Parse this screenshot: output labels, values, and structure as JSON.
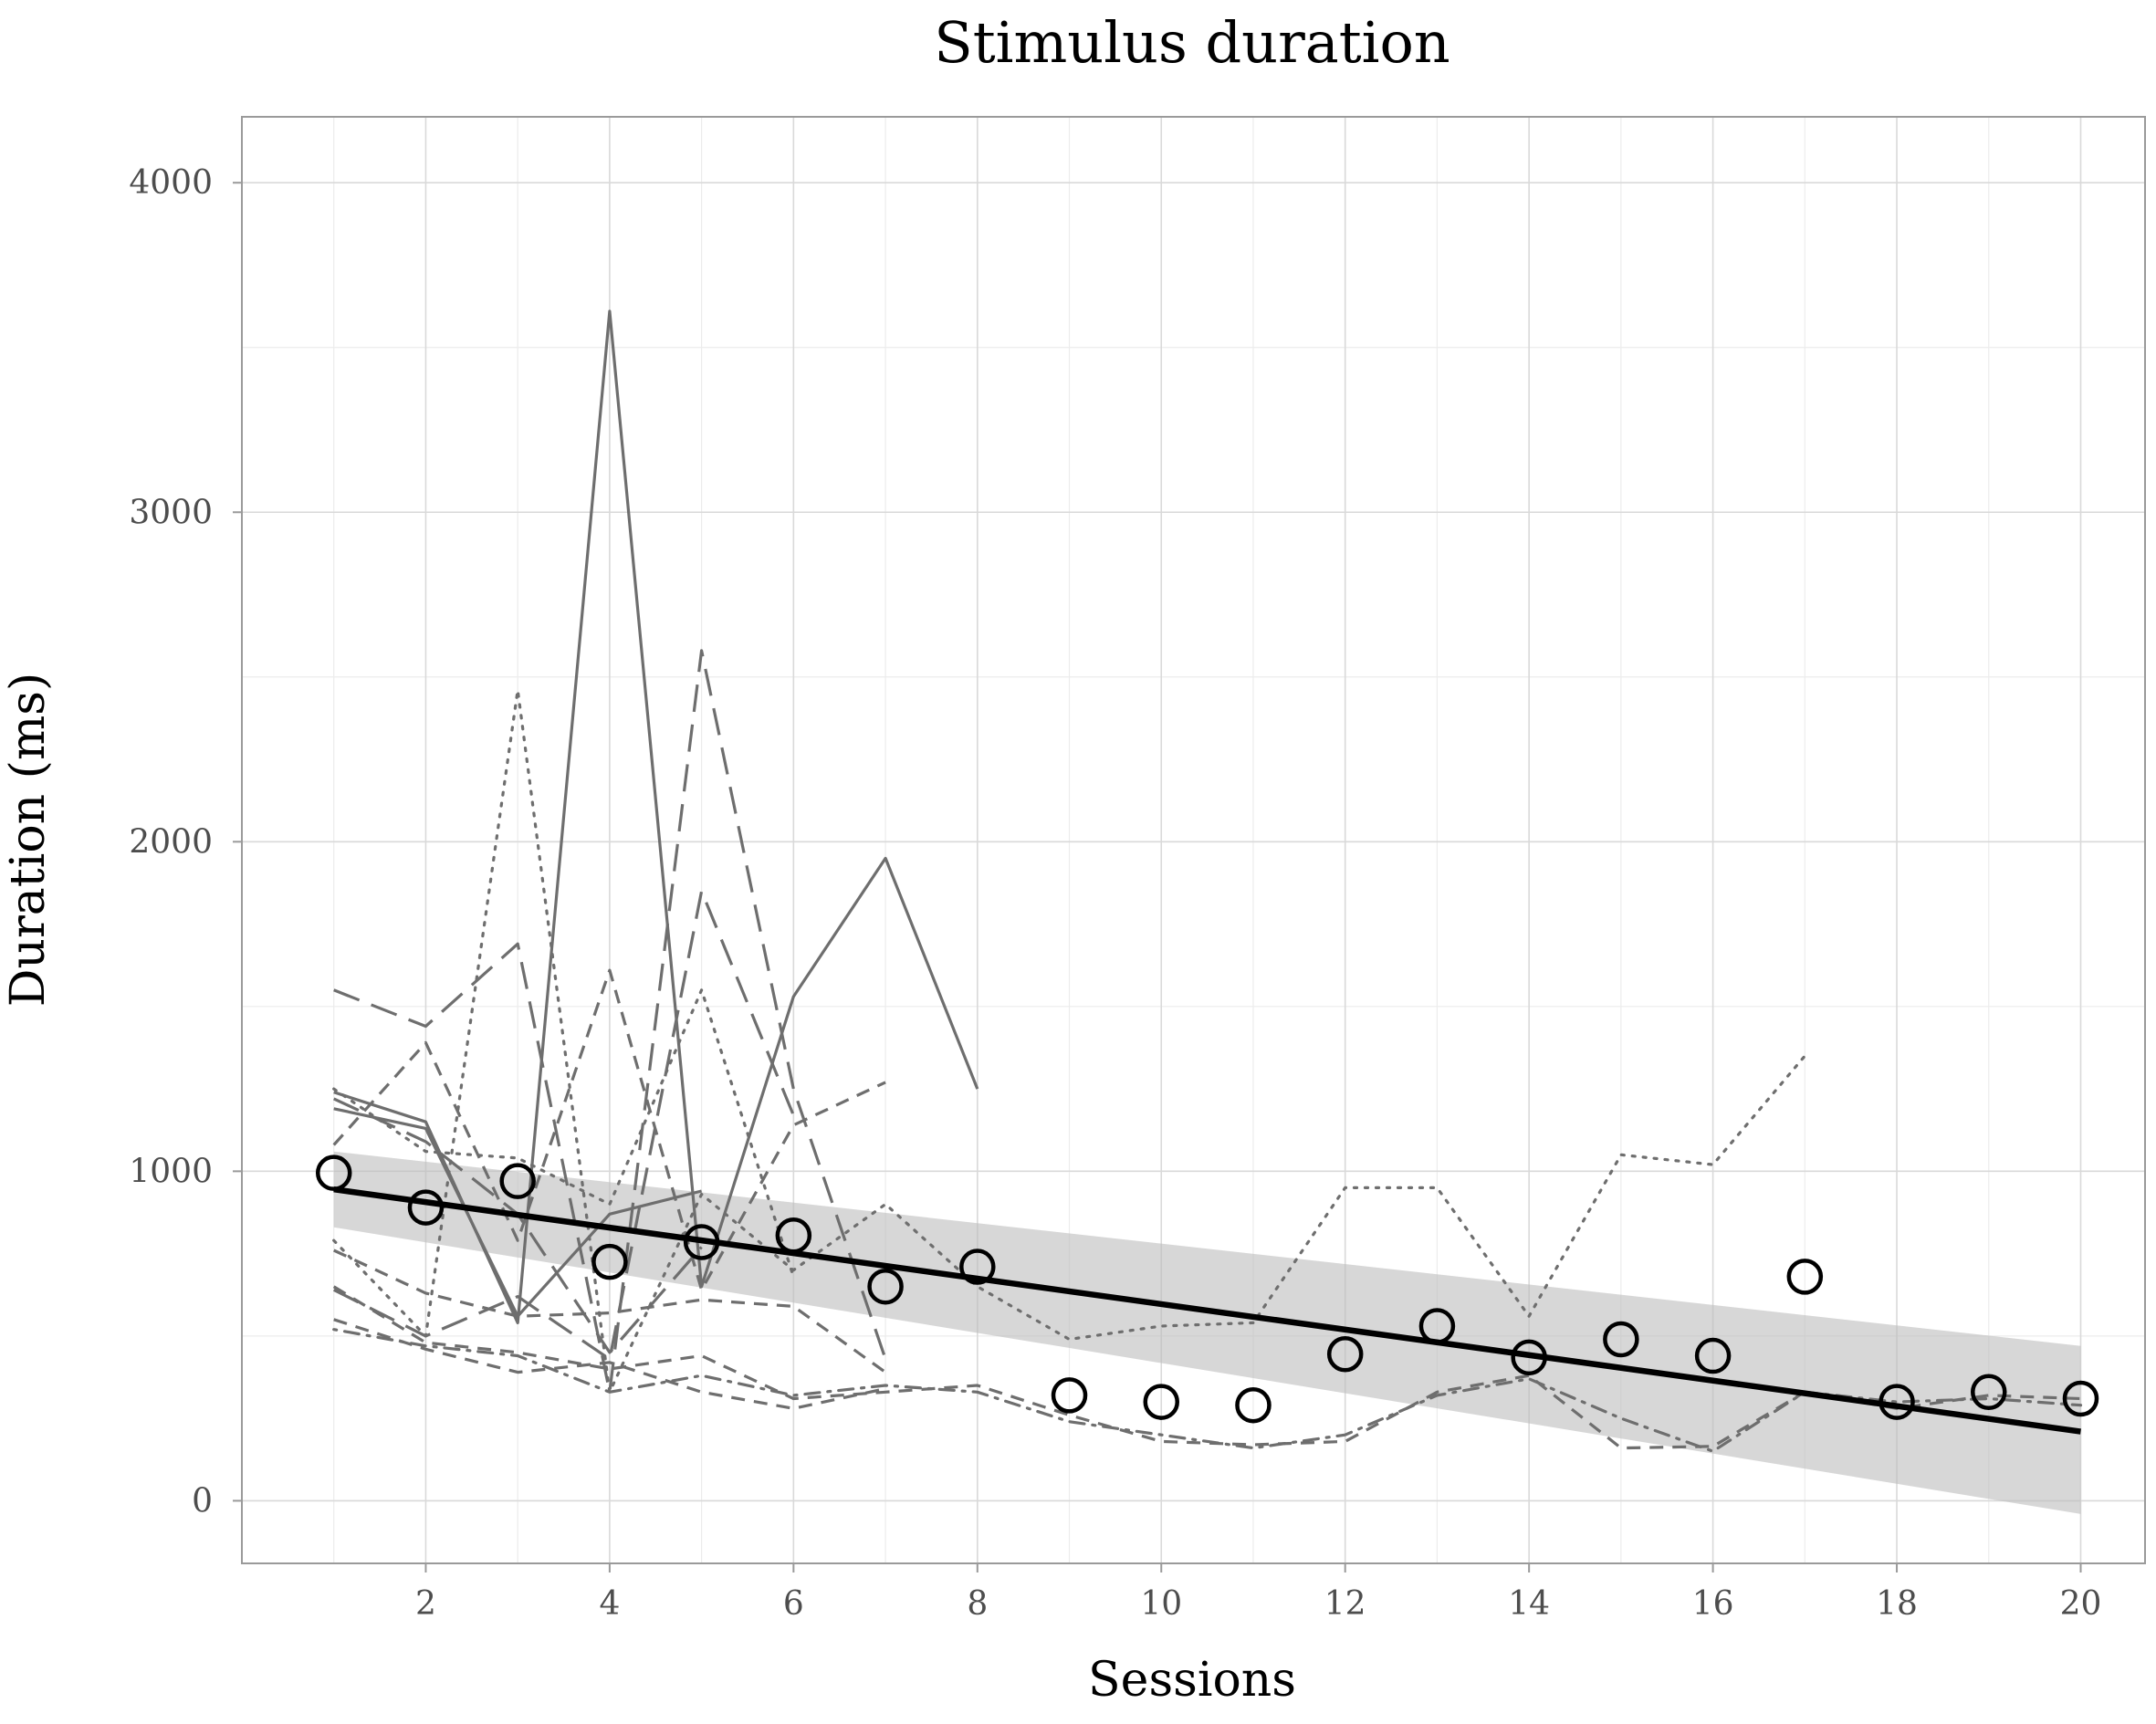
{
  "chart_data": {
    "type": "line",
    "title": "Stimulus duration",
    "xlabel": "Sessions",
    "ylabel": "Duration (ms)",
    "xlim": [
      0,
      20.7
    ],
    "ylim": [
      -190,
      4200
    ],
    "x_ticks": [
      2,
      4,
      6,
      8,
      10,
      12,
      14,
      16,
      18,
      20
    ],
    "x_tick_labels": [
      "2",
      "4",
      "6",
      "8",
      "10",
      "12",
      "14",
      "16",
      "18",
      "20"
    ],
    "y_ticks": [
      0,
      1000,
      2000,
      3000,
      4000
    ],
    "y_tick_labels": [
      "0",
      "1000",
      "2000",
      "3000",
      "4000"
    ],
    "grid": true,
    "legend": "none",
    "mean_points": {
      "x": [
        1,
        2,
        3,
        4,
        5,
        6,
        7,
        8,
        9,
        10,
        11,
        12,
        13,
        14,
        15,
        16,
        17,
        18,
        19,
        20
      ],
      "y": [
        995,
        890,
        970,
        725,
        785,
        805,
        650,
        710,
        320,
        300,
        290,
        445,
        530,
        435,
        490,
        440,
        680,
        300,
        330,
        310
      ]
    },
    "fit_line": {
      "x": [
        1,
        20
      ],
      "y": [
        945,
        210
      ]
    },
    "confidence_band": {
      "x": [
        1,
        20
      ],
      "lower": [
        830,
        -40
      ],
      "upper": [
        1060,
        470
      ]
    },
    "series": [
      {
        "dash": "solid",
        "x": [
          1,
          2,
          3,
          4,
          5,
          6,
          7,
          8
        ],
        "y": [
          1240,
          1150,
          540,
          3610,
          650,
          1530,
          1950,
          1250
        ]
      },
      {
        "dash": "solid",
        "x": [
          1,
          2,
          3,
          4,
          5
        ],
        "y": [
          1190,
          1130,
          560,
          870,
          940
        ]
      },
      {
        "dash": "longdash",
        "x": [
          1,
          2,
          3,
          4,
          5,
          6,
          7
        ],
        "y": [
          1550,
          1440,
          1690,
          330,
          2580,
          1250,
          430
        ]
      },
      {
        "dash": "longdash",
        "x": [
          1,
          2,
          3,
          4,
          5,
          6
        ],
        "y": [
          640,
          500,
          620,
          430,
          1850,
          1170
        ]
      },
      {
        "dash": "longdash",
        "x": [
          1,
          2,
          3,
          4,
          5
        ],
        "y": [
          1220,
          1090,
          870,
          450,
          770
        ]
      },
      {
        "dash": "dotted",
        "x": [
          1,
          2,
          3,
          4,
          5,
          6,
          7,
          8,
          9,
          10,
          11,
          12,
          13,
          14,
          15,
          16,
          17
        ],
        "y": [
          790,
          500,
          2460,
          330,
          930,
          700,
          900,
          650,
          490,
          530,
          540,
          950,
          950,
          560,
          1050,
          1020,
          1350
        ]
      },
      {
        "dash": "dotted",
        "x": [
          1,
          2,
          3,
          4,
          5,
          6
        ],
        "y": [
          1250,
          1060,
          1040,
          900,
          1550,
          680
        ]
      },
      {
        "dash": "dashed",
        "x": [
          1,
          2,
          3,
          4,
          5,
          6,
          7
        ],
        "y": [
          1080,
          1390,
          790,
          1610,
          640,
          1140,
          1270
        ]
      },
      {
        "dash": "dashed",
        "x": [
          1,
          2,
          3,
          4,
          5,
          6,
          7
        ],
        "y": [
          550,
          460,
          390,
          420,
          330,
          280,
          340
        ]
      },
      {
        "dash": "dashed",
        "x": [
          1,
          2,
          3,
          4,
          5,
          6,
          7
        ],
        "y": [
          760,
          630,
          560,
          570,
          610,
          590,
          390
        ]
      },
      {
        "dash": "dashed",
        "x": [
          1,
          2,
          3,
          4,
          5,
          6,
          7,
          8,
          9,
          10,
          11,
          12,
          13,
          14,
          15,
          16,
          17,
          18,
          19,
          20
        ],
        "y": [
          650,
          480,
          450,
          400,
          440,
          310,
          330,
          350,
          260,
          180,
          170,
          180,
          330,
          380,
          160,
          165,
          330,
          280,
          320,
          310
        ]
      },
      {
        "dash": "dotdash",
        "x": [
          1,
          2,
          3,
          4,
          5,
          6,
          7,
          8,
          9,
          10,
          11,
          12,
          13,
          14,
          15,
          16,
          17,
          18,
          19,
          20
        ],
        "y": [
          520,
          470,
          440,
          330,
          380,
          320,
          350,
          330,
          240,
          200,
          160,
          200,
          320,
          370,
          250,
          150,
          330,
          300,
          310,
          290
        ]
      }
    ]
  }
}
